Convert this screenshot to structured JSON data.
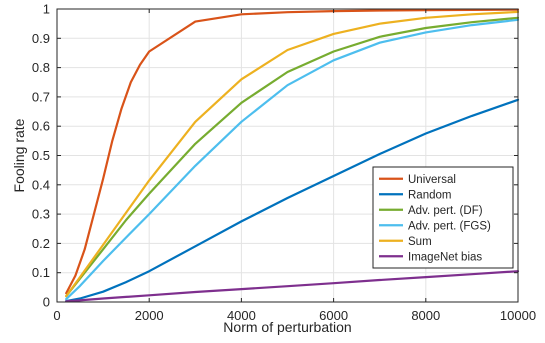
{
  "chart_data": {
    "type": "line",
    "xlabel": "Norm of perturbation",
    "ylabel": "Fooling rate",
    "xlim": [
      0,
      10000
    ],
    "ylim": [
      0,
      1
    ],
    "x_ticks": [
      0,
      2000,
      4000,
      6000,
      8000,
      10000
    ],
    "y_ticks": [
      0,
      0.1,
      0.2,
      0.3,
      0.4,
      0.5,
      0.6,
      0.7,
      0.8,
      0.9,
      1
    ],
    "grid": true,
    "legend_position": "bottom-right",
    "series": [
      {
        "name": "Universal",
        "color": "#d95319",
        "x": [
          200,
          400,
          600,
          800,
          1000,
          1200,
          1400,
          1600,
          1800,
          2000,
          3000,
          4000,
          5000,
          6000,
          7000,
          8000,
          9000,
          10000
        ],
        "y": [
          0.03,
          0.09,
          0.18,
          0.3,
          0.42,
          0.55,
          0.66,
          0.75,
          0.81,
          0.855,
          0.957,
          0.982,
          0.989,
          0.993,
          0.995,
          0.996,
          0.997,
          0.998
        ]
      },
      {
        "name": "Random",
        "color": "#0072bd",
        "x": [
          200,
          500,
          1000,
          1500,
          2000,
          3000,
          4000,
          5000,
          6000,
          7000,
          8000,
          9000,
          10000
        ],
        "y": [
          0.003,
          0.012,
          0.035,
          0.068,
          0.105,
          0.19,
          0.275,
          0.355,
          0.43,
          0.505,
          0.575,
          0.635,
          0.69
        ]
      },
      {
        "name": "Adv. pert. (DF)",
        "color": "#77ac30",
        "x": [
          200,
          500,
          1000,
          1500,
          2000,
          3000,
          4000,
          5000,
          6000,
          7000,
          8000,
          9000,
          10000
        ],
        "y": [
          0.02,
          0.08,
          0.18,
          0.28,
          0.37,
          0.54,
          0.68,
          0.785,
          0.855,
          0.905,
          0.935,
          0.955,
          0.97
        ]
      },
      {
        "name": "Adv. pert. (FGS)",
        "color": "#4dbeee",
        "x": [
          200,
          500,
          1000,
          1500,
          2000,
          3000,
          4000,
          5000,
          6000,
          7000,
          8000,
          9000,
          10000
        ],
        "y": [
          0.01,
          0.055,
          0.14,
          0.22,
          0.3,
          0.465,
          0.615,
          0.74,
          0.825,
          0.885,
          0.92,
          0.945,
          0.963
        ]
      },
      {
        "name": "Sum",
        "color": "#edb120",
        "x": [
          200,
          500,
          1000,
          1500,
          2000,
          3000,
          4000,
          5000,
          6000,
          7000,
          8000,
          9000,
          10000
        ],
        "y": [
          0.02,
          0.085,
          0.195,
          0.305,
          0.415,
          0.615,
          0.76,
          0.86,
          0.915,
          0.95,
          0.97,
          0.982,
          0.99
        ]
      },
      {
        "name": "ImageNet bias",
        "color": "#7e2f8e",
        "x": [
          200,
          1000,
          2000,
          3000,
          4000,
          5000,
          6000,
          7000,
          8000,
          9000,
          10000
        ],
        "y": [
          0.002,
          0.012,
          0.023,
          0.034,
          0.044,
          0.054,
          0.064,
          0.075,
          0.085,
          0.095,
          0.105
        ]
      }
    ]
  }
}
